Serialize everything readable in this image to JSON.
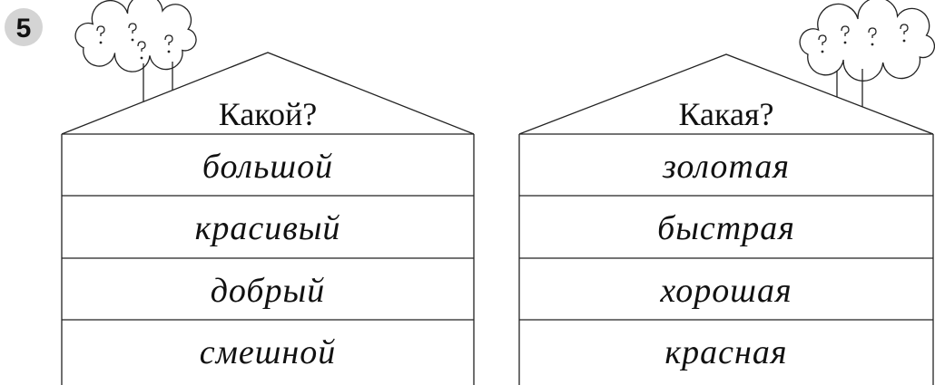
{
  "exercise_number": "5",
  "houses": [
    {
      "title": "Какой?",
      "words": [
        "большой",
        "красивый",
        "добрый",
        "смешной"
      ]
    },
    {
      "title": "Какая?",
      "words": [
        "золотая",
        "быстрая",
        "хорошая",
        "красная"
      ]
    }
  ]
}
